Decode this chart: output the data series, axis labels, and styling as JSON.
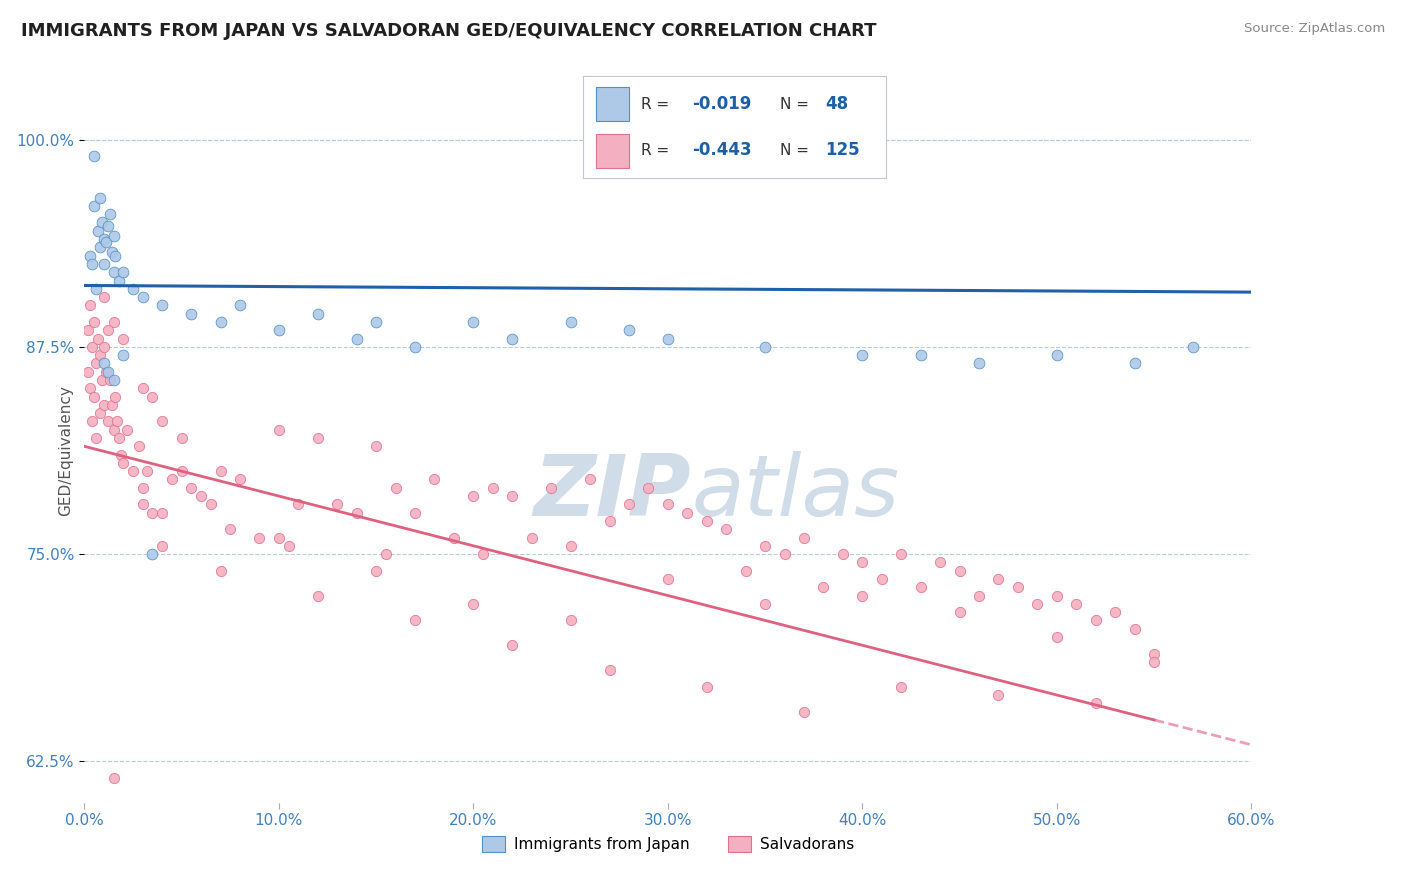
{
  "title": "IMMIGRANTS FROM JAPAN VS SALVADORAN GED/EQUIVALENCY CORRELATION CHART",
  "source": "Source: ZipAtlas.com",
  "xlabel_blue": "Immigrants from Japan",
  "xlabel_pink": "Salvadorans",
  "ylabel": "GED/Equivalency",
  "xlim": [
    0.0,
    60.0
  ],
  "ylim": [
    60.0,
    102.5
  ],
  "ytick_vals": [
    62.5,
    75.0,
    87.5,
    100.0
  ],
  "ytick_labels": [
    "62.5%",
    "75.0%",
    "87.5%",
    "100.0%"
  ],
  "xtick_vals": [
    0.0,
    10.0,
    20.0,
    30.0,
    40.0,
    50.0,
    60.0
  ],
  "xtick_labels": [
    "0.0%",
    "10.0%",
    "20.0%",
    "30.0%",
    "40.0%",
    "50.0%",
    "60.0%"
  ],
  "blue_R": -0.019,
  "blue_N": 48,
  "pink_R": -0.443,
  "pink_N": 125,
  "blue_dot_color": "#aec8e8",
  "blue_edge_color": "#5090c8",
  "pink_dot_color": "#f4b0c0",
  "pink_edge_color": "#e07090",
  "blue_line_color": "#2060a8",
  "pink_line_color": "#e06080",
  "background_color": "#ffffff",
  "grid_color": "#b8cce0",
  "title_color": "#202020",
  "axis_label_color": "#4080c0",
  "source_color": "#888888",
  "watermark_color": "#d0dce8",
  "legend_border_color": "#c0c8d8",
  "blue_line_y0": 91.2,
  "blue_line_y1": 90.8,
  "pink_line_y0": 81.5,
  "pink_line_y1": 63.5,
  "pink_solid_end_x": 55.0,
  "blue_scatter_x": [
    0.3,
    0.5,
    0.5,
    0.7,
    0.8,
    0.8,
    0.9,
    1.0,
    1.0,
    1.1,
    1.2,
    1.3,
    1.4,
    1.5,
    1.5,
    1.6,
    1.8,
    2.0,
    2.5,
    3.0,
    4.0,
    5.5,
    7.0,
    8.0,
    10.0,
    12.0,
    14.0,
    15.0,
    17.0,
    20.0,
    22.0,
    25.0,
    28.0,
    30.0,
    35.0,
    40.0,
    43.0,
    46.0,
    50.0,
    54.0,
    57.0,
    1.0,
    1.2,
    1.5,
    2.0,
    0.4,
    0.6,
    3.5
  ],
  "blue_scatter_y": [
    93.0,
    99.0,
    96.0,
    94.5,
    96.5,
    93.5,
    95.0,
    94.0,
    92.5,
    93.8,
    94.8,
    95.5,
    93.2,
    94.2,
    92.0,
    93.0,
    91.5,
    92.0,
    91.0,
    90.5,
    90.0,
    89.5,
    89.0,
    90.0,
    88.5,
    89.5,
    88.0,
    89.0,
    87.5,
    89.0,
    88.0,
    89.0,
    88.5,
    88.0,
    87.5,
    87.0,
    87.0,
    86.5,
    87.0,
    86.5,
    87.5,
    86.5,
    86.0,
    85.5,
    87.0,
    92.5,
    91.0,
    75.0
  ],
  "pink_scatter_x": [
    0.2,
    0.2,
    0.3,
    0.3,
    0.4,
    0.4,
    0.5,
    0.5,
    0.6,
    0.6,
    0.7,
    0.8,
    0.8,
    0.9,
    1.0,
    1.0,
    1.0,
    1.1,
    1.2,
    1.2,
    1.3,
    1.4,
    1.5,
    1.5,
    1.6,
    1.7,
    1.8,
    1.9,
    2.0,
    2.0,
    2.2,
    2.5,
    2.8,
    3.0,
    3.0,
    3.2,
    3.5,
    4.0,
    4.0,
    4.5,
    5.0,
    5.5,
    6.0,
    6.5,
    7.0,
    7.5,
    8.0,
    9.0,
    10.0,
    10.5,
    11.0,
    12.0,
    13.0,
    14.0,
    15.0,
    15.5,
    16.0,
    17.0,
    18.0,
    19.0,
    20.0,
    20.5,
    21.0,
    22.0,
    23.0,
    24.0,
    25.0,
    26.0,
    27.0,
    28.0,
    29.0,
    30.0,
    31.0,
    32.0,
    33.0,
    34.0,
    35.0,
    36.0,
    37.0,
    38.0,
    39.0,
    40.0,
    41.0,
    42.0,
    43.0,
    44.0,
    45.0,
    46.0,
    47.0,
    48.0,
    49.0,
    50.0,
    51.0,
    52.0,
    53.0,
    54.0,
    55.0,
    5.0,
    10.0,
    15.0,
    20.0,
    25.0,
    30.0,
    35.0,
    40.0,
    45.0,
    50.0,
    55.0,
    3.0,
    3.5,
    4.0,
    7.0,
    12.0,
    17.0,
    22.0,
    27.0,
    32.0,
    37.0,
    42.0,
    47.0,
    52.0,
    1.5
  ],
  "pink_scatter_y": [
    88.5,
    86.0,
    90.0,
    85.0,
    87.5,
    83.0,
    89.0,
    84.5,
    86.5,
    82.0,
    88.0,
    87.0,
    83.5,
    85.5,
    90.5,
    87.5,
    84.0,
    86.0,
    88.5,
    83.0,
    85.5,
    84.0,
    89.0,
    82.5,
    84.5,
    83.0,
    82.0,
    81.0,
    88.0,
    80.5,
    82.5,
    80.0,
    81.5,
    85.0,
    78.0,
    80.0,
    84.5,
    83.0,
    77.5,
    79.5,
    82.0,
    79.0,
    78.5,
    78.0,
    80.0,
    76.5,
    79.5,
    76.0,
    82.5,
    75.5,
    78.0,
    82.0,
    78.0,
    77.5,
    81.5,
    75.0,
    79.0,
    77.5,
    79.5,
    76.0,
    78.5,
    75.0,
    79.0,
    78.5,
    76.0,
    79.0,
    75.5,
    79.5,
    77.0,
    78.0,
    79.0,
    78.0,
    77.5,
    77.0,
    76.5,
    74.0,
    75.5,
    75.0,
    76.0,
    73.0,
    75.0,
    74.5,
    73.5,
    75.0,
    73.0,
    74.5,
    74.0,
    72.5,
    73.5,
    73.0,
    72.0,
    72.5,
    72.0,
    71.0,
    71.5,
    70.5,
    69.0,
    80.0,
    76.0,
    74.0,
    72.0,
    71.0,
    73.5,
    72.0,
    72.5,
    71.5,
    70.0,
    68.5,
    79.0,
    77.5,
    75.5,
    74.0,
    72.5,
    71.0,
    69.5,
    68.0,
    67.0,
    65.5,
    67.0,
    66.5,
    66.0,
    61.5
  ]
}
